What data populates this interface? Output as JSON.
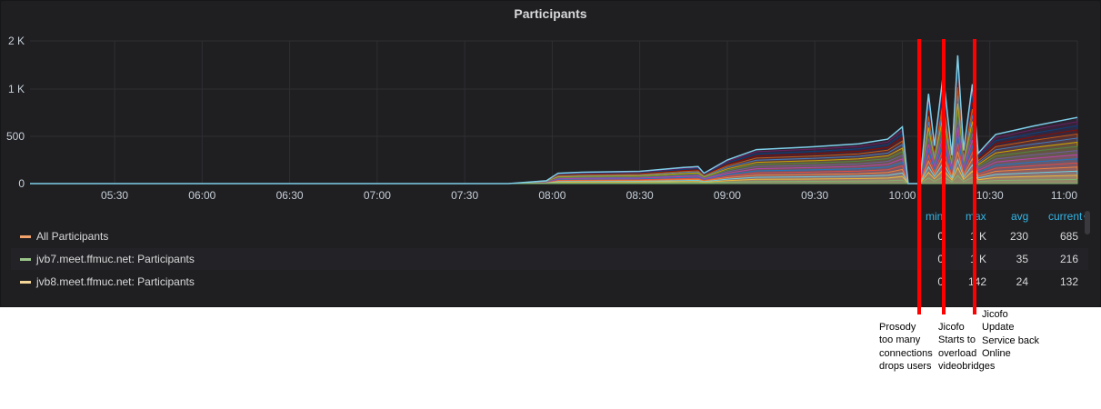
{
  "panel": {
    "title": "Participants"
  },
  "chart_data": {
    "type": "area",
    "title": "Participants",
    "x_ticks": [
      "05:30",
      "06:00",
      "06:30",
      "07:00",
      "07:30",
      "08:00",
      "08:30",
      "09:00",
      "09:30",
      "10:00",
      "10:30",
      "11:00"
    ],
    "y_ticks": [
      "0",
      "500",
      "1 K",
      "2 K"
    ],
    "x_range": [
      "05:01",
      "11:00"
    ],
    "grid": true,
    "series_colors": [
      "#7eb26d",
      "#eab839",
      "#6ed0e0",
      "#ef843c",
      "#e24d42",
      "#1f78c1",
      "#ba43a9",
      "#705da0",
      "#508642",
      "#cca300",
      "#447ebc",
      "#c15c17",
      "#890f02",
      "#0a437c",
      "#6d1f62",
      "#584477"
    ],
    "total_line_color": "#7ecfe9",
    "approx_total": {
      "x": [
        "05:01",
        "07:45",
        "07:58",
        "08:02",
        "08:10",
        "08:30",
        "08:45",
        "08:50",
        "08:52",
        "09:00",
        "09:10",
        "09:30",
        "09:45",
        "09:55",
        "10:00",
        "10:02",
        "10:06",
        "10:09",
        "10:11",
        "10:14",
        "10:17",
        "10:19",
        "10:21",
        "10:24",
        "10:26",
        "10:29",
        "10:32",
        "10:45",
        "11:00"
      ],
      "y": [
        0,
        0,
        30,
        110,
        120,
        130,
        170,
        180,
        110,
        250,
        360,
        390,
        420,
        470,
        600,
        0,
        0,
        950,
        400,
        1300,
        300,
        1700,
        350,
        1100,
        320,
        420,
        520,
        610,
        700
      ]
    },
    "legend": [
      {
        "name": "All Participants",
        "color": "#f2a36b",
        "min": "0",
        "max": "1 K",
        "avg": "230",
        "current": "685"
      },
      {
        "name": "jvb7.meet.ffmuc.net: Participants",
        "color": "#9ac48a",
        "min": "0",
        "max": "1 K",
        "avg": "35",
        "current": "216"
      },
      {
        "name": "jvb8.meet.ffmuc.net: Participants",
        "color": "#f4d598",
        "min": "0",
        "max": "142",
        "avg": "24",
        "current": "132"
      }
    ],
    "legend_headers": [
      "min",
      "max",
      "avg",
      "current"
    ],
    "annotations": [
      {
        "text": "Prosody\ntoo many\nconnections\ndrops users",
        "color": "#ff0000"
      },
      {
        "text": "Jicofo\nStarts to\noverload\nvideobridges",
        "color": "#ff0000"
      },
      {
        "text": "Jicofo\nUpdate\nService back\nOnline",
        "color": "#ff0000"
      }
    ]
  }
}
